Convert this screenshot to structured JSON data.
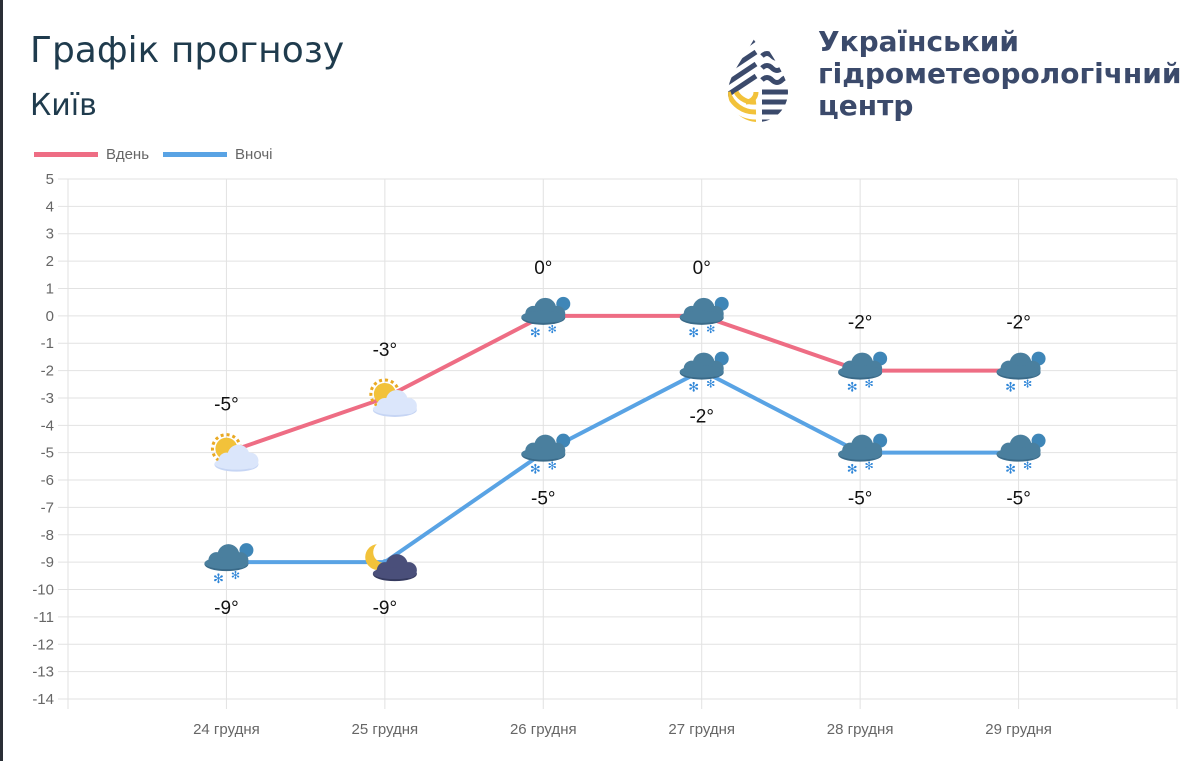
{
  "header": {
    "title": "Графік прогнозу",
    "city": "Київ"
  },
  "logo": {
    "lines": [
      "Український",
      "гідрометеорологічний",
      "центр"
    ],
    "colors": {
      "navy": "#3b4a6b",
      "yellow": "#f2c23a"
    }
  },
  "chart_data": {
    "type": "line",
    "categories": [
      "24 грудня",
      "25 грудня",
      "26 грудня",
      "27 грудня",
      "28 грудня",
      "29 грудня"
    ],
    "series": [
      {
        "name": "Вдень",
        "color": "#ee6d84",
        "values": [
          -5,
          -3,
          0,
          0,
          -2,
          -2
        ],
        "labels": [
          "-5°",
          "-3°",
          "0°",
          "0°",
          "-2°",
          "-2°"
        ],
        "icons": [
          "sun-cloud",
          "sun-cloud",
          "cloud-snow",
          "cloud-snow",
          "cloud-snow",
          "cloud-snow"
        ]
      },
      {
        "name": "Вночі",
        "color": "#59a3e4",
        "values": [
          -9,
          -9,
          -5,
          -2,
          -5,
          -5
        ],
        "labels": [
          "-9°",
          "-9°",
          "-5°",
          "-2°",
          "-5°",
          "-5°"
        ],
        "icons": [
          "cloud-snow",
          "moon-cloud",
          "cloud-snow",
          "cloud-snow",
          "cloud-snow",
          "cloud-snow"
        ]
      }
    ],
    "ylim": [
      -14,
      5
    ],
    "yticks": [
      "5",
      "4",
      "3",
      "2",
      "1",
      "0",
      "-1",
      "-2",
      "-3",
      "-4",
      "-5",
      "-6",
      "-7",
      "-8",
      "-9",
      "-10",
      "-11",
      "-12",
      "-13",
      "-14"
    ],
    "grid": true,
    "legend": "top-left"
  }
}
